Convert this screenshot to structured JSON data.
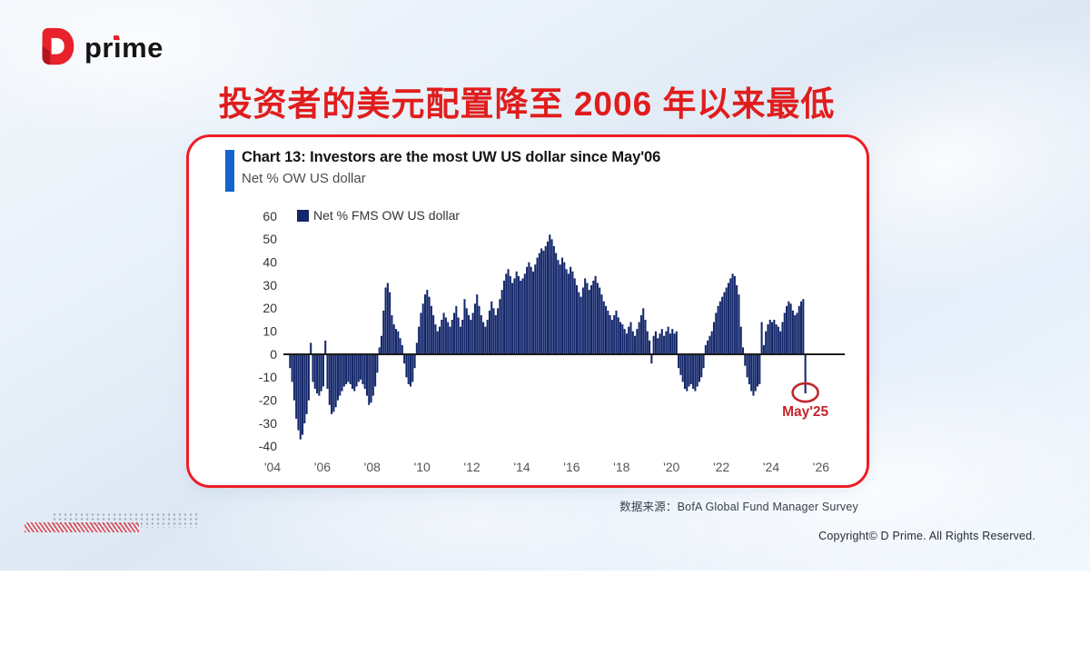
{
  "header": {
    "brand": "prime",
    "title": "投资者的美元配置降至 2006 年以来最低"
  },
  "colors": {
    "brand_red": "#e8212b",
    "brand_red_dark": "#b3141e",
    "title_red": "#e01d1d",
    "card_border_red": "#ee1c26",
    "accent_blue": "#1365cb",
    "bar_navy": "#14276b",
    "annotation_red": "#c0272d"
  },
  "chart_data": {
    "type": "bar",
    "title": "Chart 13: Investors are the most UW US dollar since May'06",
    "subtitle": "Net % OW US dollar",
    "legend": "Net % FMS OW US dollar",
    "frequency": "monthly",
    "x_start": "2004-09",
    "x_end": "2025-05",
    "ylim": [
      -40,
      60
    ],
    "grid": false,
    "legend_position": "top-left",
    "yticks": [
      60,
      50,
      40,
      30,
      20,
      10,
      0,
      -10,
      -20,
      -30,
      -40
    ],
    "xticks": [
      "'04",
      "'06",
      "'08",
      "'10",
      "'12",
      "'14",
      "'16",
      "'18",
      "'20",
      "'22",
      "'24",
      "'26"
    ],
    "bar_color": "#14276b",
    "zero_line_color": "#1b1b1b",
    "values": [
      -6,
      -12,
      -20,
      -28,
      -33,
      -37,
      -35,
      -30,
      -26,
      -20,
      5,
      -12,
      -15,
      -17,
      -18,
      -16,
      -14,
      6,
      -15,
      -22,
      -26,
      -25,
      -23,
      -20,
      -18,
      -16,
      -14,
      -13,
      -12,
      -13,
      -15,
      -16,
      -14,
      -12,
      -11,
      -13,
      -15,
      -18,
      -22,
      -21,
      -18,
      -14,
      -8,
      3,
      8,
      19,
      29,
      31,
      27,
      17,
      13,
      11,
      10,
      7,
      4,
      -4,
      -10,
      -13,
      -14,
      -12,
      -6,
      5,
      12,
      18,
      22,
      26,
      28,
      25,
      21,
      17,
      13,
      10,
      12,
      15,
      18,
      16,
      14,
      12,
      15,
      18,
      21,
      16,
      12,
      15,
      24,
      20,
      17,
      15,
      18,
      22,
      26,
      21,
      17,
      14,
      12,
      15,
      19,
      23,
      20,
      17,
      20,
      24,
      28,
      32,
      35,
      37,
      34,
      31,
      33,
      36,
      34,
      32,
      33,
      35,
      38,
      40,
      38,
      36,
      39,
      42,
      44,
      46,
      45,
      47,
      49,
      52,
      50,
      47,
      44,
      41,
      39,
      42,
      40,
      37,
      35,
      38,
      36,
      33,
      30,
      27,
      25,
      29,
      33,
      31,
      28,
      30,
      32,
      34,
      31,
      29,
      26,
      23,
      21,
      19,
      17,
      15,
      17,
      19,
      16,
      14,
      13,
      11,
      9,
      12,
      14,
      10,
      8,
      11,
      14,
      17,
      20,
      15,
      10,
      6,
      -4,
      8,
      10,
      7,
      9,
      11,
      8,
      10,
      12,
      9,
      11,
      9,
      10,
      -6,
      -9,
      -12,
      -15,
      -16,
      -14,
      -13,
      -15,
      -16,
      -14,
      -12,
      -10,
      -6,
      4,
      6,
      8,
      10,
      14,
      18,
      21,
      23,
      25,
      27,
      29,
      31,
      33,
      35,
      34,
      30,
      26,
      12,
      3,
      -5,
      -10,
      -13,
      -16,
      -18,
      -16,
      -14,
      -13,
      14,
      4,
      10,
      13,
      15,
      14,
      15,
      13,
      12,
      10,
      14,
      18,
      21,
      23,
      22,
      19,
      17,
      18,
      21,
      23,
      24,
      -17
    ],
    "annotation": {
      "label": "May'25",
      "value": -17,
      "color": "#c0272d"
    }
  },
  "footer": {
    "source": "数据来源：BofA Global Fund Manager Survey",
    "copyright": "Copyright© D Prime. All Rights Reserved."
  }
}
